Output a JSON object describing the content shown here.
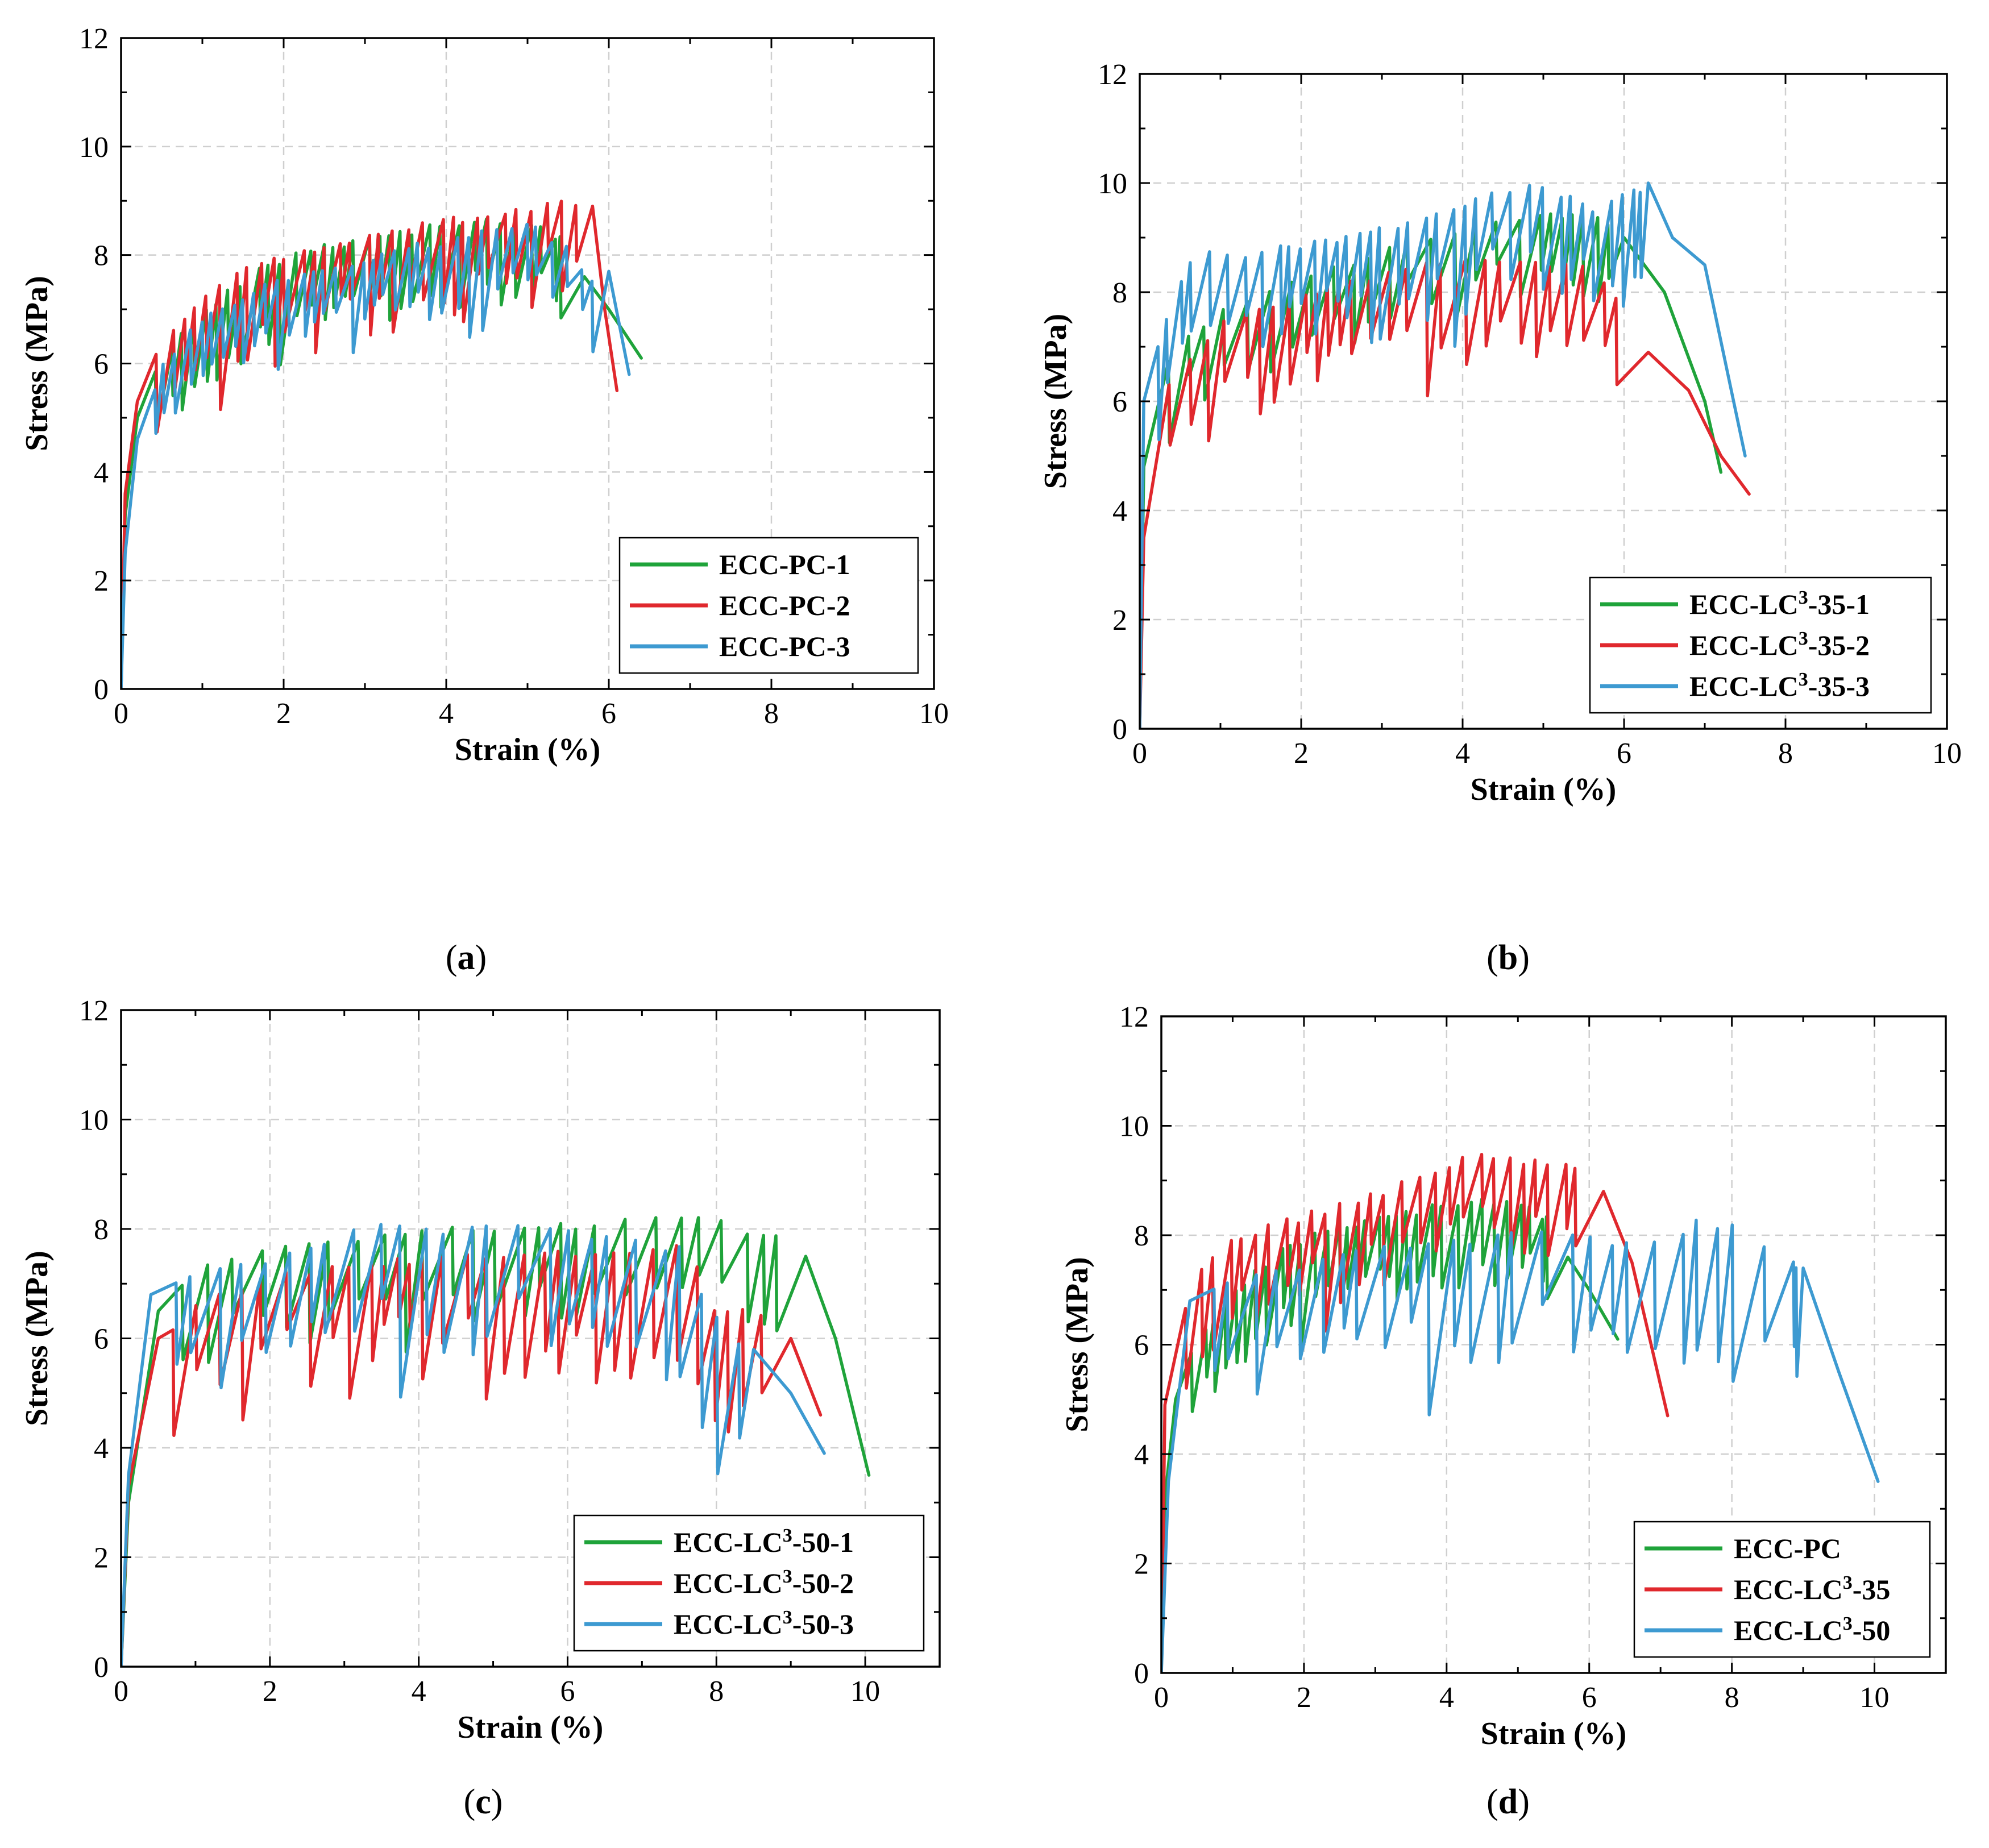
{
  "colors": {
    "green": "#1fa33a",
    "red": "#e0282d",
    "blue": "#3d9ad1",
    "grid": "#cfcfcf"
  },
  "chart_data": [
    {
      "id": "a",
      "type": "line",
      "caption_letter": "a",
      "xlabel": "Strain (%)",
      "ylabel": "Stress (MPa)",
      "xlim": [
        0,
        10
      ],
      "ylim": [
        0,
        12
      ],
      "xticks": [
        0,
        2,
        4,
        6,
        8,
        10
      ],
      "yticks": [
        0,
        2,
        4,
        6,
        8,
        10,
        12
      ],
      "grid": true,
      "legend_position": "bottom-right",
      "series": [
        {
          "name": "ECC-PC-1",
          "color": "#1fa33a",
          "seed": 11,
          "envelope": [
            [
              0,
              0
            ],
            [
              0.05,
              3.2
            ],
            [
              0.2,
              5.0
            ],
            [
              0.5,
              6.2
            ],
            [
              1,
              7.0
            ],
            [
              1.5,
              7.6
            ],
            [
              2,
              8.0
            ],
            [
              2.5,
              8.2
            ],
            [
              3,
              8.4
            ],
            [
              3.5,
              8.5
            ],
            [
              4,
              8.6
            ],
            [
              4.5,
              8.7
            ],
            [
              5,
              8.6
            ],
            [
              5.4,
              8.4
            ],
            [
              5.7,
              7.6
            ],
            [
              6.0,
              7.0
            ],
            [
              6.4,
              6.1
            ]
          ],
          "drop_start": 0.3,
          "drop_end": 5.4,
          "drop_step": 0.16,
          "drop_depth": [
            0.8,
            2.2
          ]
        },
        {
          "name": "ECC-PC-2",
          "color": "#e0282d",
          "seed": 23,
          "envelope": [
            [
              0,
              0
            ],
            [
              0.05,
              3.6
            ],
            [
              0.2,
              5.3
            ],
            [
              0.5,
              6.5
            ],
            [
              1,
              7.3
            ],
            [
              1.5,
              7.8
            ],
            [
              2,
              8.0
            ],
            [
              2.5,
              8.2
            ],
            [
              3,
              8.4
            ],
            [
              3.5,
              8.6
            ],
            [
              4,
              8.7
            ],
            [
              4.5,
              8.8
            ],
            [
              5,
              8.9
            ],
            [
              5.3,
              9.1
            ],
            [
              5.6,
              9.0
            ],
            [
              5.8,
              8.9
            ],
            [
              5.95,
              7.0
            ],
            [
              6.1,
              5.5
            ]
          ],
          "drop_start": 0.3,
          "drop_end": 5.6,
          "drop_step": 0.17,
          "drop_depth": [
            0.9,
            2.6
          ]
        },
        {
          "name": "ECC-PC-3",
          "color": "#3d9ad1",
          "seed": 37,
          "envelope": [
            [
              0,
              0
            ],
            [
              0.05,
              2.5
            ],
            [
              0.2,
              4.6
            ],
            [
              0.5,
              6.0
            ],
            [
              1,
              6.9
            ],
            [
              1.5,
              7.3
            ],
            [
              2,
              7.6
            ],
            [
              2.5,
              7.8
            ],
            [
              3,
              8.0
            ],
            [
              3.5,
              8.2
            ],
            [
              4,
              8.3
            ],
            [
              4.5,
              8.5
            ],
            [
              5,
              8.6
            ],
            [
              5.4,
              8.3
            ],
            [
              5.8,
              7.6
            ],
            [
              6.0,
              7.7
            ],
            [
              6.25,
              5.8
            ]
          ],
          "drop_start": 0.3,
          "drop_end": 5.8,
          "drop_step": 0.15,
          "drop_depth": [
            0.7,
            1.9
          ]
        }
      ]
    },
    {
      "id": "b",
      "type": "line",
      "caption_letter": "b",
      "xlabel": "Strain (%)",
      "ylabel": "Stress (MPa)",
      "xlim": [
        0,
        10
      ],
      "ylim": [
        0,
        12
      ],
      "xticks": [
        0,
        2,
        4,
        6,
        8,
        10
      ],
      "yticks": [
        0,
        2,
        4,
        6,
        8,
        10,
        12
      ],
      "grid": true,
      "legend_position": "bottom-right",
      "series": [
        {
          "name": "ECC-LC³-35-1",
          "color": "#1fa33a",
          "seed": 41,
          "envelope": [
            [
              0,
              0
            ],
            [
              0.05,
              4.8
            ],
            [
              0.3,
              6.8
            ],
            [
              1,
              7.8
            ],
            [
              2,
              8.3
            ],
            [
              3,
              8.8
            ],
            [
              4,
              9.2
            ],
            [
              5,
              9.5
            ],
            [
              5.7,
              9.4
            ],
            [
              6,
              9.0
            ],
            [
              6.5,
              8.0
            ],
            [
              7,
              6.0
            ],
            [
              7.2,
              4.7
            ]
          ],
          "drop_start": 0.2,
          "drop_end": 5.8,
          "drop_step": 0.2,
          "drop_depth": [
            0.7,
            2.3
          ]
        },
        {
          "name": "ECC-LC³-35-2",
          "color": "#e0282d",
          "seed": 53,
          "envelope": [
            [
              0,
              0
            ],
            [
              0.05,
              3.5
            ],
            [
              0.3,
              6.2
            ],
            [
              1,
              7.5
            ],
            [
              2,
              8.0
            ],
            [
              3,
              8.4
            ],
            [
              4,
              8.7
            ],
            [
              5,
              8.6
            ],
            [
              5.5,
              8.5
            ],
            [
              5.9,
              8.0
            ],
            [
              6.3,
              6.9
            ],
            [
              6.8,
              6.2
            ],
            [
              7.2,
              5.0
            ],
            [
              7.55,
              4.3
            ]
          ],
          "drop_start": 0.2,
          "drop_end": 5.9,
          "drop_step": 0.21,
          "drop_depth": [
            1.0,
            2.8
          ]
        },
        {
          "name": "ECC-LC³-35-3",
          "color": "#3d9ad1",
          "seed": 67,
          "envelope": [
            [
              0,
              0
            ],
            [
              0.05,
              6.0
            ],
            [
              0.3,
              7.5
            ],
            [
              0.7,
              8.9
            ],
            [
              1,
              8.7
            ],
            [
              2,
              8.9
            ],
            [
              3,
              9.2
            ],
            [
              3.8,
              9.6
            ],
            [
              4.4,
              9.9
            ],
            [
              5,
              10.0
            ],
            [
              5.6,
              9.6
            ],
            [
              6,
              9.8
            ],
            [
              6.3,
              10.0
            ],
            [
              6.6,
              9.0
            ],
            [
              7,
              8.5
            ],
            [
              7.5,
              5.0
            ]
          ],
          "drop_start": 0.1,
          "drop_end": 6.2,
          "drop_step": 0.16,
          "drop_depth": [
            0.9,
            3.0
          ]
        }
      ]
    },
    {
      "id": "c",
      "type": "line",
      "caption_letter": "c",
      "xlabel": "Strain (%)",
      "ylabel": "Stress (MPa)",
      "xlim": [
        0,
        11
      ],
      "ylim": [
        0,
        12
      ],
      "xticks": [
        0,
        2,
        4,
        6,
        8,
        10
      ],
      "yticks": [
        0,
        2,
        4,
        6,
        8,
        10,
        12
      ],
      "grid": true,
      "legend_position": "bottom-right",
      "series": [
        {
          "name": "ECC-LC³-50-1",
          "color": "#1fa33a",
          "seed": 71,
          "envelope": [
            [
              0,
              0
            ],
            [
              0.1,
              3.0
            ],
            [
              0.5,
              6.5
            ],
            [
              1,
              7.4
            ],
            [
              2,
              7.7
            ],
            [
              3,
              7.9
            ],
            [
              4,
              8.0
            ],
            [
              5,
              8.1
            ],
            [
              6,
              8.1
            ],
            [
              7,
              8.2
            ],
            [
              7.8,
              8.3
            ],
            [
              8.2,
              8.1
            ],
            [
              8.8,
              7.9
            ],
            [
              9.2,
              7.5
            ],
            [
              9.6,
              6.0
            ],
            [
              10.05,
              3.5
            ]
          ],
          "drop_start": 0.6,
          "drop_end": 8.8,
          "drop_step": 0.28,
          "drop_depth": [
            1.0,
            2.5
          ]
        },
        {
          "name": "ECC-LC³-50-2",
          "color": "#e0282d",
          "seed": 83,
          "envelope": [
            [
              0,
              0
            ],
            [
              0.1,
              3.3
            ],
            [
              0.5,
              6.0
            ],
            [
              1,
              6.7
            ],
            [
              2,
              7.2
            ],
            [
              3,
              7.4
            ],
            [
              4,
              7.5
            ],
            [
              5,
              7.6
            ],
            [
              6,
              7.6
            ],
            [
              7,
              7.7
            ],
            [
              7.6,
              7.8
            ],
            [
              8,
              6.5
            ],
            [
              8.5,
              6.7
            ],
            [
              9,
              6.0
            ],
            [
              9.4,
              4.6
            ]
          ],
          "drop_start": 0.5,
          "drop_end": 8.6,
          "drop_step": 0.25,
          "drop_depth": [
            1.0,
            3.6
          ]
        },
        {
          "name": "ECC-LC³-50-3",
          "color": "#3d9ad1",
          "seed": 97,
          "envelope": [
            [
              0,
              0
            ],
            [
              0.1,
              3.5
            ],
            [
              0.4,
              6.8
            ],
            [
              1,
              7.2
            ],
            [
              2,
              7.5
            ],
            [
              3,
              7.8
            ],
            [
              3.3,
              8.3
            ],
            [
              4,
              8.0
            ],
            [
              5,
              8.1
            ],
            [
              6,
              8.0
            ],
            [
              7,
              7.8
            ],
            [
              7.5,
              7.7
            ],
            [
              8,
              6.4
            ],
            [
              8.5,
              5.8
            ],
            [
              9,
              5.0
            ],
            [
              9.45,
              3.9
            ]
          ],
          "drop_start": 0.5,
          "drop_end": 8.3,
          "drop_step": 0.3,
          "drop_depth": [
            1.2,
            3.4
          ]
        }
      ]
    },
    {
      "id": "d",
      "type": "line",
      "caption_letter": "d",
      "xlabel": "Strain (%)",
      "ylabel": "Stress (MPa)",
      "xlim": [
        0,
        11
      ],
      "ylim": [
        0,
        12
      ],
      "xticks": [
        0,
        2,
        4,
        6,
        8,
        10
      ],
      "yticks": [
        0,
        2,
        4,
        6,
        8,
        10,
        12
      ],
      "grid": true,
      "legend_position": "bottom-right",
      "series": [
        {
          "name": "ECC-PC",
          "color": "#1fa33a",
          "seed": 11,
          "envelope": [
            [
              0,
              0
            ],
            [
              0.05,
              3.2
            ],
            [
              0.2,
              5.0
            ],
            [
              0.5,
              6.2
            ],
            [
              1,
              7.0
            ],
            [
              1.5,
              7.6
            ],
            [
              2,
              8.0
            ],
            [
              2.5,
              8.2
            ],
            [
              3,
              8.4
            ],
            [
              3.5,
              8.5
            ],
            [
              4,
              8.6
            ],
            [
              4.5,
              8.7
            ],
            [
              5,
              8.6
            ],
            [
              5.4,
              8.4
            ],
            [
              5.7,
              7.6
            ],
            [
              6.0,
              7.0
            ],
            [
              6.4,
              6.1
            ]
          ],
          "drop_start": 0.3,
          "drop_end": 5.4,
          "drop_step": 0.16,
          "drop_depth": [
            0.8,
            2.2
          ]
        },
        {
          "name": "ECC-LC³-35",
          "color": "#e0282d",
          "seed": 29,
          "envelope": [
            [
              0,
              0
            ],
            [
              0.05,
              4.9
            ],
            [
              0.4,
              7.2
            ],
            [
              1,
              8.0
            ],
            [
              2,
              8.4
            ],
            [
              3,
              8.8
            ],
            [
              4,
              9.3
            ],
            [
              4.5,
              9.6
            ],
            [
              5,
              9.4
            ],
            [
              5.5,
              9.4
            ],
            [
              5.8,
              9.3
            ],
            [
              6.2,
              8.8
            ],
            [
              6.6,
              7.5
            ],
            [
              7.1,
              4.7
            ]
          ],
          "drop_start": 0.2,
          "drop_end": 5.8,
          "drop_step": 0.18,
          "drop_depth": [
            0.9,
            2.4
          ]
        },
        {
          "name": "ECC-LC³-50",
          "color": "#3d9ad1",
          "seed": 97,
          "envelope": [
            [
              0,
              0
            ],
            [
              0.1,
              3.5
            ],
            [
              0.4,
              6.8
            ],
            [
              1,
              7.2
            ],
            [
              2,
              7.5
            ],
            [
              3,
              7.8
            ],
            [
              3.5,
              7.9
            ],
            [
              4,
              7.9
            ],
            [
              5,
              8.1
            ],
            [
              6,
              8.0
            ],
            [
              6.5,
              7.9
            ],
            [
              7,
              7.9
            ],
            [
              7.5,
              8.3
            ],
            [
              8,
              8.2
            ],
            [
              8.5,
              7.9
            ],
            [
              9,
              7.4
            ],
            [
              9.5,
              5.5
            ],
            [
              10.05,
              3.5
            ]
          ],
          "drop_start": 0.5,
          "drop_end": 8.9,
          "drop_step": 0.3,
          "drop_depth": [
            1.2,
            3.4
          ]
        }
      ]
    }
  ]
}
